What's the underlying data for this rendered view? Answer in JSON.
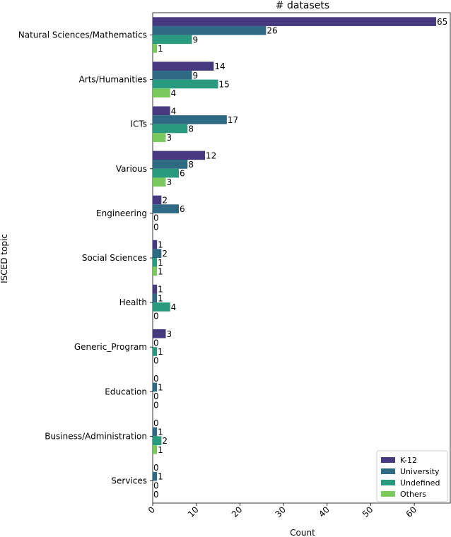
{
  "chart_data": {
    "type": "bar",
    "orientation": "horizontal",
    "title": "# datasets",
    "xlabel": "Count",
    "ylabel": "ISCED topic",
    "xlim": [
      0,
      68.25
    ],
    "xticks": [
      0,
      10,
      20,
      30,
      40,
      50,
      60
    ],
    "categories": [
      "Natural Sciences/Mathematics",
      "Arts/Humanities",
      "ICTs",
      "Various",
      "Engineering",
      "Social Sciences",
      "Health",
      "Generic_Program",
      "Education",
      "Business/Administration",
      "Services"
    ],
    "series": [
      {
        "name": "K-12",
        "color": "#46397f",
        "values": [
          65,
          14,
          4,
          12,
          2,
          1,
          1,
          3,
          0,
          0,
          0
        ]
      },
      {
        "name": "University",
        "color": "#2f6a84",
        "values": [
          26,
          9,
          17,
          8,
          6,
          2,
          1,
          0,
          1,
          1,
          1
        ]
      },
      {
        "name": "Undefined",
        "color": "#2a9a7f",
        "values": [
          9,
          15,
          8,
          6,
          0,
          1,
          4,
          1,
          0,
          2,
          0
        ]
      },
      {
        "name": "Others",
        "color": "#7ac95d",
        "values": [
          1,
          4,
          3,
          3,
          0,
          1,
          0,
          0,
          0,
          1,
          0
        ]
      }
    ],
    "grid": false,
    "legend_position": "bottom-right"
  }
}
